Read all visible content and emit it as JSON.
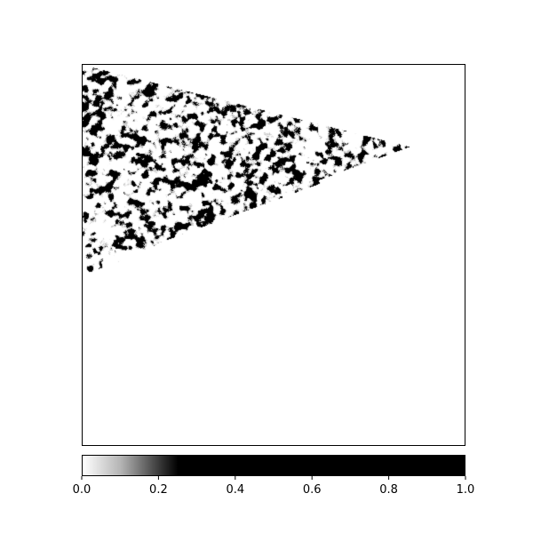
{
  "chart_data": {
    "type": "heatmap",
    "title": "",
    "xlabel": "",
    "ylabel": "",
    "axes_ticks_visible": false,
    "grid": false,
    "colormap": {
      "name": "grayscale-saturating",
      "stops": [
        {
          "value": 0.0,
          "color": "#ffffff"
        },
        {
          "value": 0.1,
          "color": "#b4b4b4"
        },
        {
          "value": 0.2,
          "color": "#3a3a3a"
        },
        {
          "value": 0.25,
          "color": "#000000"
        },
        {
          "value": 1.0,
          "color": "#000000"
        }
      ]
    },
    "colorbar": {
      "orientation": "horizontal",
      "position": "bottom",
      "range": [
        0.0,
        1.0
      ],
      "ticks": [
        0.0,
        0.2,
        0.4,
        0.6,
        0.8,
        1.0
      ],
      "tick_labels": [
        "0.0",
        "0.2",
        "0.4",
        "0.6",
        "0.8",
        "1.0"
      ]
    },
    "texture": {
      "description_values": {
        "white_fraction": 0.55,
        "black_fraction": 0.25
      }
    }
  }
}
